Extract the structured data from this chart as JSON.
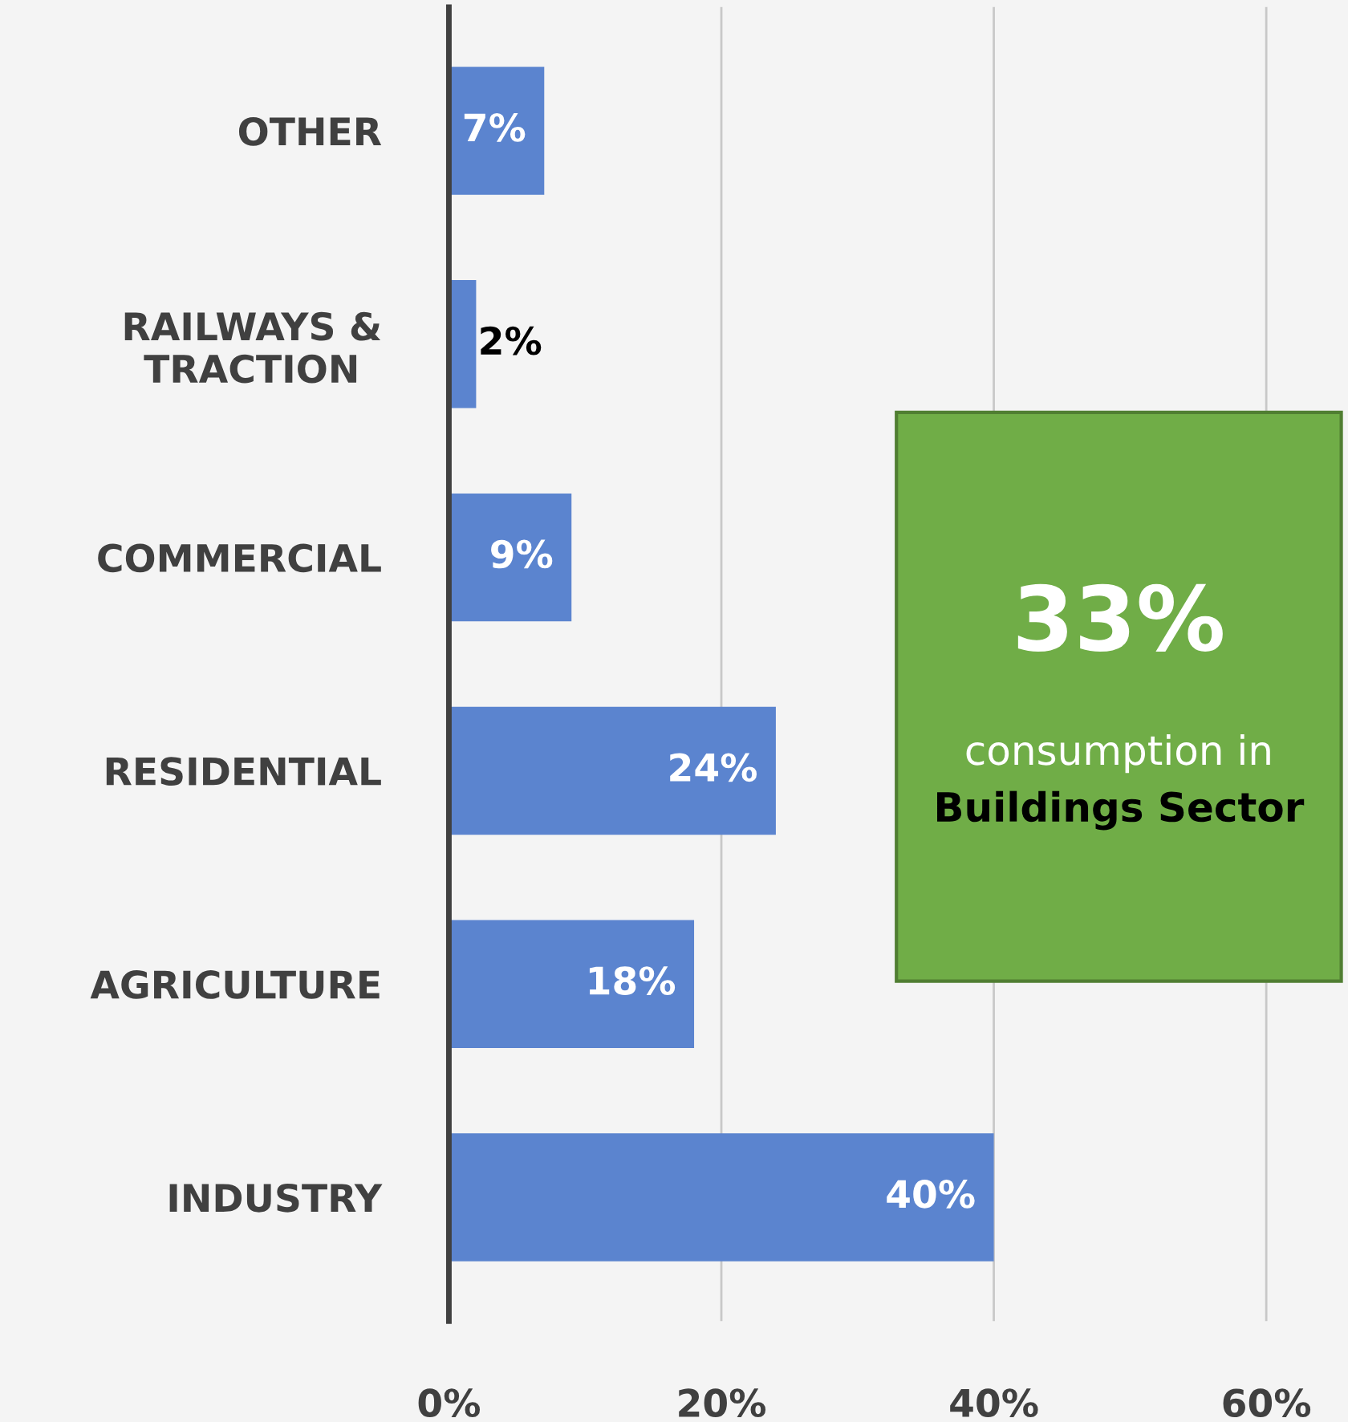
{
  "chart_data": {
    "type": "bar",
    "orientation": "horizontal",
    "categories": [
      "OTHER",
      "RAILWAYS &\nTRACTION",
      "COMMERCIAL",
      "RESIDENTIAL",
      "AGRICULTURE",
      "INDUSTRY"
    ],
    "values": [
      7,
      2,
      9,
      24,
      18,
      40
    ],
    "value_labels": [
      "7%",
      "2%",
      "9%",
      "24%",
      "18%",
      "40%"
    ],
    "color": "#5b84cf",
    "xlim": [
      0,
      66
    ],
    "xticks": [
      {
        "value": 0,
        "label": "0%"
      },
      {
        "value": 20,
        "label": "20%"
      },
      {
        "value": 40,
        "label": "40%"
      },
      {
        "value": 60,
        "label": "60%"
      }
    ],
    "grid": "x",
    "annotations": [
      "33%",
      "consumption in",
      "Buildings Sector"
    ]
  }
}
